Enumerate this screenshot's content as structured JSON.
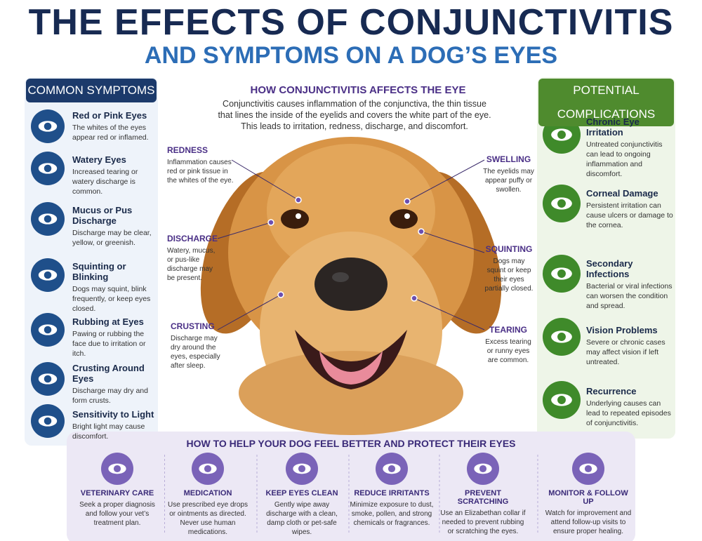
{
  "header": {
    "title": "THE EFFECTS OF CONJUNCTIVITIS",
    "subtitle": "AND SYMPTOMS ON A DOG’S EYES"
  },
  "symptoms": {
    "heading": "COMMON SYMPTOMS",
    "items": [
      {
        "title": "Red or Pink Eyes",
        "text": "The whites of the eyes appear red or inflamed."
      },
      {
        "title": "Watery Eyes",
        "text": "Increased tearing or watery discharge is common."
      },
      {
        "title": "Mucus or Pus Discharge",
        "text": "Discharge may be clear, yellow, or greenish."
      },
      {
        "title": "Squinting or Blinking",
        "text": "Dogs may squint, blink frequently, or keep eyes closed."
      },
      {
        "title": "Rubbing at Eyes",
        "text": "Pawing or rubbing the face due to irritation or itch."
      },
      {
        "title": "Crusting Around Eyes",
        "text": "Discharge may dry and form crusts."
      },
      {
        "title": "Sensitivity to Light",
        "text": "Bright light may cause discomfort."
      }
    ]
  },
  "center": {
    "heading": "HOW CONJUNCTIVITIS AFFECTS THE EYE",
    "intro": "Conjunctivitis causes inflammation of the conjunctiva, the thin tissue that lines the inside of the eyelids and covers the white part of the eye. This leads to irritation, redness, discharge, and discomfort.",
    "callouts": [
      {
        "label": "REDNESS",
        "text": "Inflammation causes red or pink tissue in the whites of the eye."
      },
      {
        "label": "DISCHARGE",
        "text": "Watery, mucus, or pus-like discharge may be present."
      },
      {
        "label": "CRUSTING",
        "text": "Discharge may dry around the eyes, especially after sleep."
      },
      {
        "label": "SWELLING",
        "text": "The eyelids may appear puffy or swollen."
      },
      {
        "label": "SQUINTING",
        "text": "Dogs may squint or keep their eyes partially closed."
      },
      {
        "label": "TEARING",
        "text": "Excess tearing or runny eyes are common."
      }
    ]
  },
  "complications": {
    "heading": "POTENTIAL COMPLICATIONS",
    "items": [
      {
        "title": "Chronic Eye Irritation",
        "text": "Untreated conjunctivitis can lead to ongoing inflammation and discomfort."
      },
      {
        "title": "Corneal Damage",
        "text": "Persistent irritation can cause ulcers or damage to the cornea."
      },
      {
        "title": "Secondary Infections",
        "text": "Bacterial or viral infections can worsen the condition and spread."
      },
      {
        "title": "Vision Problems",
        "text": "Severe or chronic cases may affect vision if left untreated."
      },
      {
        "title": "Recurrence",
        "text": "Underlying causes can lead to repeated episodes of conjunctivitis."
      }
    ]
  },
  "help": {
    "heading": "HOW TO HELP YOUR DOG FEEL BETTER AND PROTECT THEIR EYES",
    "items": [
      {
        "title": "VETERINARY CARE",
        "text": "Seek a proper diagnosis and follow your vet’s treatment plan."
      },
      {
        "title": "MEDICATION",
        "text": "Use prescribed eye drops or ointments as directed. Never use human medications."
      },
      {
        "title": "KEEP EYES CLEAN",
        "text": "Gently wipe away discharge with a clean, damp cloth or pet-safe wipes."
      },
      {
        "title": "REDUCE IRRITANTS",
        "text": "Minimize exposure to dust, smoke, pollen, and strong chemicals or fragrances."
      },
      {
        "title": "PREVENT SCRATCHING",
        "text": "Use an Elizabethan collar if needed to prevent rubbing or scratching the eyes."
      },
      {
        "title": "MONITOR & FOLLOW UP",
        "text": "Watch for improvement and attend follow-up visits to ensure proper healing."
      }
    ]
  }
}
